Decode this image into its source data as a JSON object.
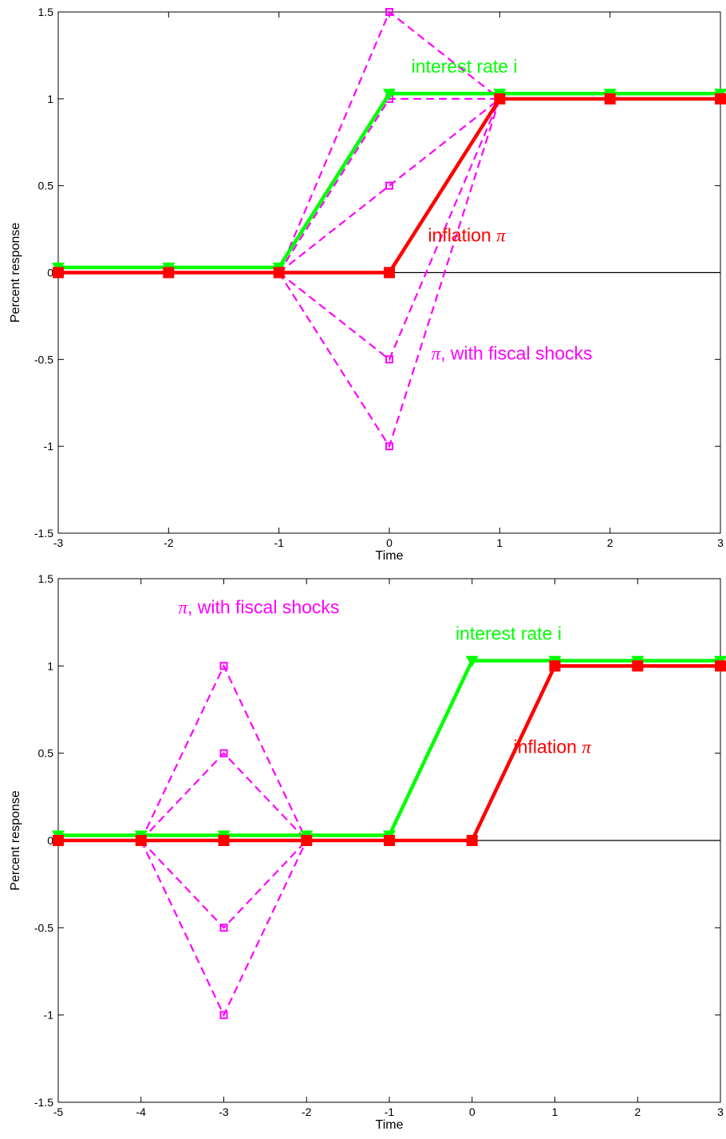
{
  "chart_data": [
    {
      "type": "line",
      "xlabel": "Time",
      "ylabel": "Percent response",
      "xlim": [
        -3,
        3
      ],
      "ylim": [
        -1.5,
        1.5
      ],
      "xticks": [
        "-3",
        "-2",
        "-1",
        "0",
        "1",
        "2",
        "3"
      ],
      "yticks": [
        "-1.5",
        "-1",
        "-0.5",
        "0",
        "0.5",
        "1",
        "1.5"
      ],
      "grid": false,
      "zero_line": true,
      "series": [
        {
          "name": "interest rate i",
          "color": "#00ff00",
          "marker": "triangle-down",
          "style": "solid",
          "x": [
            -3,
            -2,
            -1,
            0,
            1,
            2,
            3
          ],
          "y": [
            0.03,
            0.03,
            0.03,
            1.03,
            1.03,
            1.03,
            1.03
          ]
        },
        {
          "name": "inflation π",
          "color": "#ff0000",
          "marker": "square",
          "style": "solid",
          "x": [
            -3,
            -2,
            -1,
            0,
            1,
            2,
            3
          ],
          "y": [
            0,
            0,
            0,
            0,
            1,
            1,
            1
          ]
        },
        {
          "name": "π, with fiscal shocks",
          "color": "#ff00ff",
          "marker": "open-square",
          "style": "dashed",
          "paths": [
            {
              "x": [
                -1,
                0,
                1
              ],
              "y": [
                0,
                1.5,
                1
              ]
            },
            {
              "x": [
                -1,
                0,
                1
              ],
              "y": [
                0,
                1,
                1
              ]
            },
            {
              "x": [
                -1,
                0,
                1
              ],
              "y": [
                0,
                0.5,
                1
              ]
            },
            {
              "x": [
                -1,
                0,
                1
              ],
              "y": [
                0,
                -0.5,
                1
              ]
            },
            {
              "x": [
                -1,
                0,
                1
              ],
              "y": [
                0,
                -1,
                1
              ]
            }
          ]
        }
      ],
      "annotations": [
        {
          "text": "interest rate i",
          "color": "#00ff00",
          "x": 0.2,
          "y": 1.15
        },
        {
          "text": "inflation ",
          "symbol": "π",
          "color": "#ff0000",
          "x": 0.35,
          "y": 0.18
        },
        {
          "symbol": "π",
          "text": ", with fiscal shocks",
          "color": "#ff00ff",
          "x": 0.38,
          "y": -0.5
        }
      ]
    },
    {
      "type": "line",
      "xlabel": "Time",
      "ylabel": "Percent response",
      "xlim": [
        -5,
        3
      ],
      "ylim": [
        -1.5,
        1.5
      ],
      "xticks": [
        "-5",
        "-4",
        "-3",
        "-2",
        "-1",
        "0",
        "1",
        "2",
        "3"
      ],
      "yticks": [
        "-1.5",
        "-1",
        "-0.5",
        "0",
        "0.5",
        "1",
        "1.5"
      ],
      "grid": false,
      "zero_line": true,
      "series": [
        {
          "name": "interest rate i",
          "color": "#00ff00",
          "marker": "triangle-down",
          "style": "solid",
          "x": [
            -5,
            -4,
            -3,
            -2,
            -1,
            0,
            1,
            2,
            3
          ],
          "y": [
            0.03,
            0.03,
            0.03,
            0.03,
            0.03,
            1.03,
            1.03,
            1.03,
            1.03
          ]
        },
        {
          "name": "inflation π",
          "color": "#ff0000",
          "marker": "square",
          "style": "solid",
          "x": [
            -5,
            -4,
            -3,
            -2,
            -1,
            0,
            1,
            2,
            3
          ],
          "y": [
            0,
            0,
            0,
            0,
            0,
            0,
            1,
            1,
            1
          ]
        },
        {
          "name": "π, with fiscal shocks",
          "color": "#ff00ff",
          "marker": "open-square",
          "style": "dashed",
          "paths": [
            {
              "x": [
                -4,
                -3,
                -2
              ],
              "y": [
                0,
                1,
                0
              ]
            },
            {
              "x": [
                -4,
                -3,
                -2
              ],
              "y": [
                0,
                0.5,
                0
              ]
            },
            {
              "x": [
                -4,
                -3,
                -2
              ],
              "y": [
                0,
                -0.5,
                0
              ]
            },
            {
              "x": [
                -4,
                -3,
                -2
              ],
              "y": [
                0,
                -1,
                0
              ]
            }
          ]
        }
      ],
      "annotations": [
        {
          "symbol": "π",
          "text": ", with fiscal shocks",
          "color": "#ff00ff",
          "x": -3.55,
          "y": 1.3
        },
        {
          "text": "interest rate i",
          "color": "#00ff00",
          "x": -0.2,
          "y": 1.15
        },
        {
          "text": "inflation ",
          "symbol": "π",
          "color": "#ff0000",
          "x": 0.5,
          "y": 0.5
        }
      ]
    }
  ]
}
